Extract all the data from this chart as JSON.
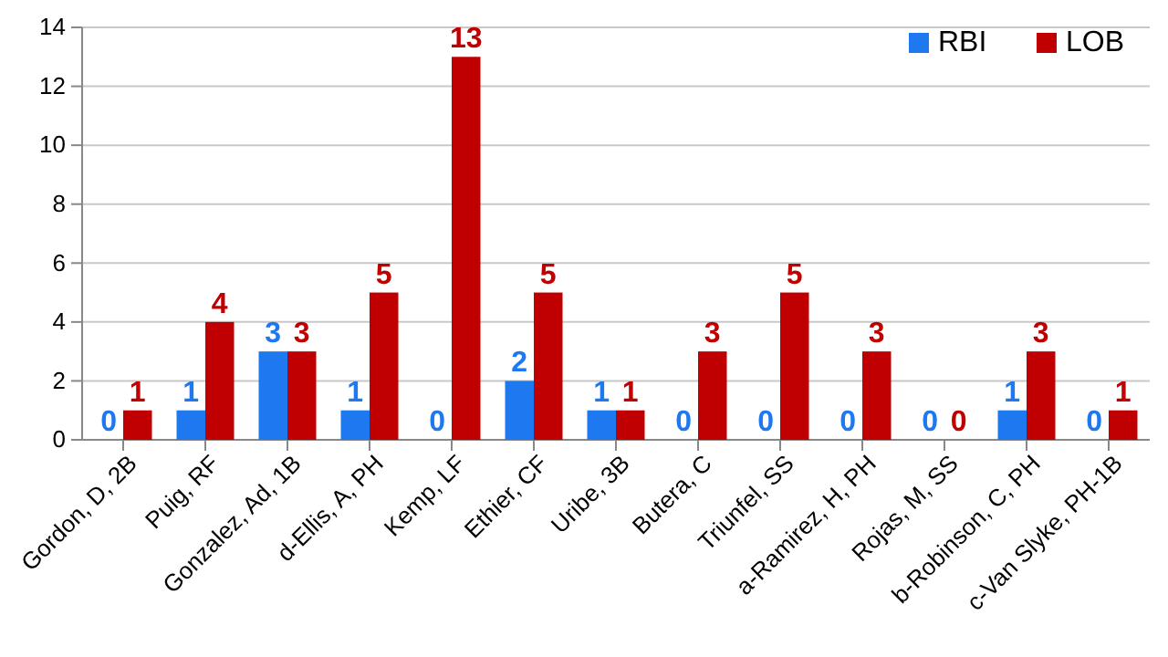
{
  "chart_data": {
    "type": "bar",
    "categories": [
      "Gordon, D, 2B",
      "Puig, RF",
      "Gonzalez, Ad, 1B",
      "d-Ellis, A, PH",
      "Kemp, LF",
      "Ethier, CF",
      "Uribe, 3B",
      "Butera, C",
      "Triunfel, SS",
      "a-Ramirez, H, PH",
      "Rojas, M, SS",
      "b-Robinson, C, PH",
      "c-Van Slyke, PH-1B"
    ],
    "series": [
      {
        "name": "RBI",
        "color": "#1e78f0",
        "values": [
          0,
          1,
          3,
          1,
          0,
          2,
          1,
          0,
          0,
          0,
          0,
          1,
          0
        ]
      },
      {
        "name": "LOB",
        "color": "#c00000",
        "values": [
          1,
          4,
          3,
          5,
          13,
          5,
          1,
          3,
          5,
          3,
          0,
          3,
          1
        ]
      }
    ],
    "ylim": [
      0,
      14
    ],
    "yticks": [
      0,
      2,
      4,
      6,
      8,
      10,
      12,
      14
    ],
    "grid": "y",
    "legend": "top right",
    "data_labels": true
  }
}
